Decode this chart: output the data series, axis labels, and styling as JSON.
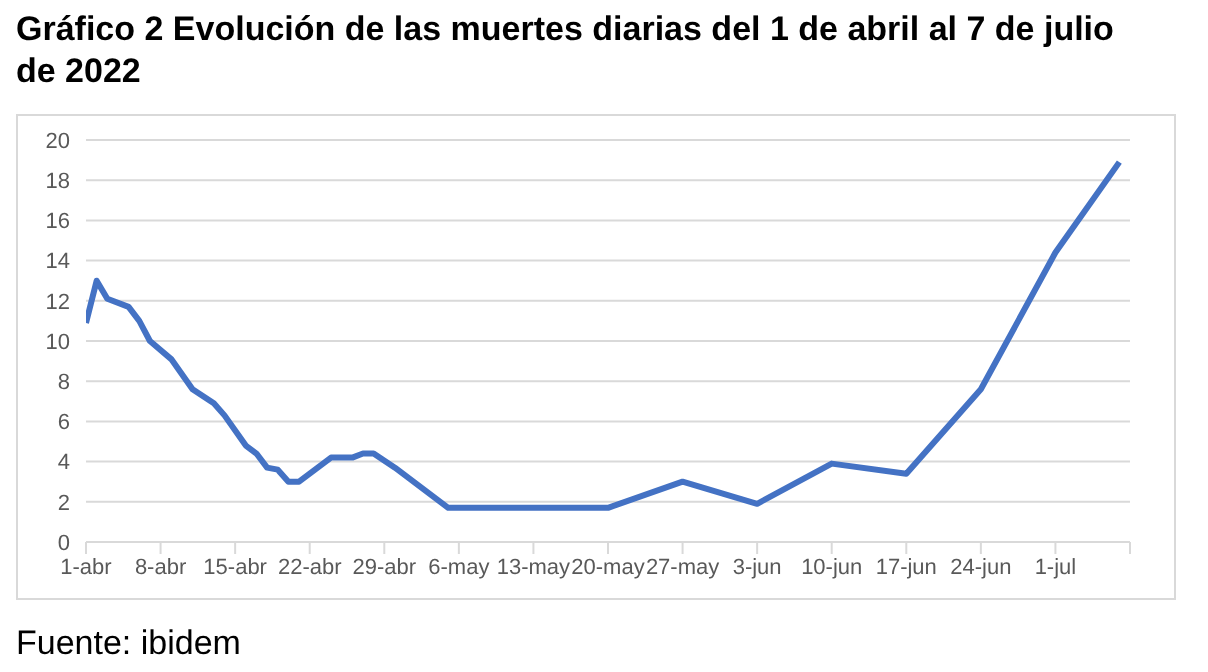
{
  "chart_data": {
    "type": "line",
    "title": "Gráfico 2 Evolución de las muertes diarias del 1 de abril al 7 de julio de 2022",
    "x": [
      "2022-04-01",
      "2022-04-02",
      "2022-04-03",
      "2022-04-05",
      "2022-04-06",
      "2022-04-07",
      "2022-04-09",
      "2022-04-11",
      "2022-04-13",
      "2022-04-14",
      "2022-04-16",
      "2022-04-17",
      "2022-04-18",
      "2022-04-19",
      "2022-04-20",
      "2022-04-21",
      "2022-04-24",
      "2022-04-26",
      "2022-04-27",
      "2022-04-28",
      "2022-04-30",
      "2022-05-05",
      "2022-05-20",
      "2022-05-27",
      "2022-06-03",
      "2022-06-10",
      "2022-06-17",
      "2022-06-24",
      "2022-07-01",
      "2022-07-07"
    ],
    "series": [
      {
        "color": "#4472c4",
        "values": [
          10.9,
          13.0,
          12.1,
          11.7,
          11.0,
          10.0,
          9.1,
          7.6,
          6.9,
          6.3,
          4.8,
          4.4,
          3.7,
          3.6,
          3.0,
          3.0,
          4.2,
          4.2,
          4.4,
          4.4,
          3.7,
          1.7,
          1.7,
          3.0,
          1.9,
          3.9,
          3.4,
          7.6,
          14.4,
          18.9
        ]
      }
    ],
    "xlim": [
      "2022-04-01",
      "2022-07-08"
    ],
    "xticks": [
      {
        "value": "2022-04-01",
        "label": "1-abr"
      },
      {
        "value": "2022-04-08",
        "label": "8-abr"
      },
      {
        "value": "2022-04-15",
        "label": "15-abr"
      },
      {
        "value": "2022-04-22",
        "label": "22-abr"
      },
      {
        "value": "2022-04-29",
        "label": "29-abr"
      },
      {
        "value": "2022-05-06",
        "label": "6-may"
      },
      {
        "value": "2022-05-13",
        "label": "13-may"
      },
      {
        "value": "2022-05-20",
        "label": "20-may"
      },
      {
        "value": "2022-05-27",
        "label": "27-may"
      },
      {
        "value": "2022-06-03",
        "label": "3-jun"
      },
      {
        "value": "2022-06-10",
        "label": "10-jun"
      },
      {
        "value": "2022-06-17",
        "label": "17-jun"
      },
      {
        "value": "2022-06-24",
        "label": "24-jun"
      },
      {
        "value": "2022-07-01",
        "label": "1-jul"
      },
      {
        "value": "2022-07-08",
        "label": null
      }
    ],
    "ylim": [
      0,
      20
    ],
    "yticks": [
      0,
      2,
      4,
      6,
      8,
      10,
      12,
      14,
      16,
      18,
      20
    ],
    "grid": "y",
    "line_style": "solid",
    "marker": "none",
    "annotations": [
      "Fuente: ibidem"
    ]
  }
}
